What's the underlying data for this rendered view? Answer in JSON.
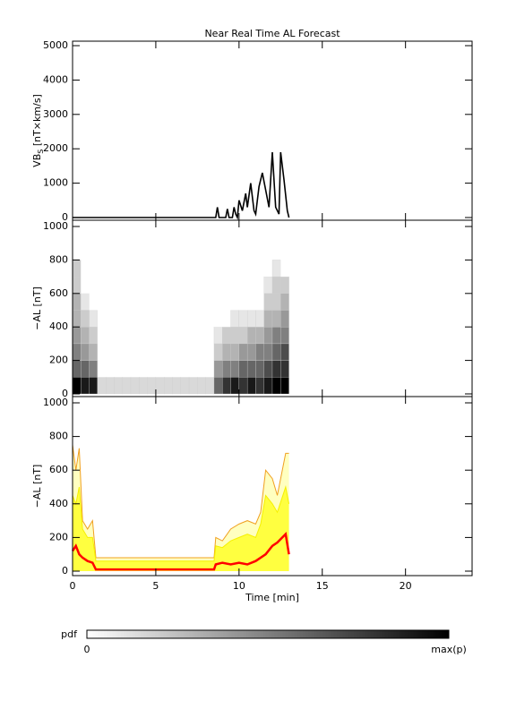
{
  "chart_data": [
    {
      "type": "line",
      "title": "Near Real Time AL Forecast",
      "ylabel_parts": [
        "VB",
        "S",
        " [nT×km/s]"
      ],
      "xlim": [
        0,
        24
      ],
      "xticks": [
        0,
        5,
        10,
        15,
        20
      ],
      "show_xticklabels": false,
      "ylim": [
        0,
        5000
      ],
      "yticks": [
        0,
        1000,
        2000,
        3000,
        4000,
        5000
      ],
      "x": [
        0,
        8.5,
        8.6,
        8.7,
        8.8,
        9.2,
        9.3,
        9.4,
        9.6,
        9.7,
        9.8,
        9.9,
        10.0,
        10.2,
        10.4,
        10.5,
        10.7,
        10.9,
        11.0,
        11.2,
        11.4,
        11.6,
        11.8,
        12.0,
        12.2,
        12.4,
        12.5,
        12.7,
        12.9,
        13.0
      ],
      "series": [
        {
          "color": "#000000",
          "values": [
            0,
            0,
            0,
            300,
            0,
            0,
            250,
            0,
            0,
            300,
            100,
            0,
            500,
            200,
            700,
            300,
            1000,
            200,
            100,
            900,
            1300,
            800,
            300,
            1900,
            300,
            100,
            1900,
            1100,
            200,
            0
          ]
        }
      ]
    },
    {
      "type": "heatmap",
      "ylabel": "−AL [nT]",
      "xlim": [
        0,
        24
      ],
      "xticks": [
        0,
        5,
        10,
        15,
        20
      ],
      "show_xticklabels": false,
      "ylim": [
        0,
        1000
      ],
      "yticks": [
        0,
        200,
        400,
        600,
        800,
        1000
      ],
      "xbins": [
        0,
        0.5,
        1,
        1.5,
        2,
        2.5,
        3,
        3.5,
        4,
        4.5,
        5,
        5.5,
        6,
        6.5,
        7,
        7.5,
        8,
        8.5,
        9,
        9.5,
        10,
        10.5,
        11,
        11.5,
        12,
        12.5,
        13
      ],
      "ybins": [
        0,
        100,
        200,
        300,
        400,
        500,
        600,
        700,
        800
      ],
      "z": [
        [
          1,
          0.6,
          0.5,
          0.4,
          0.3,
          0.3,
          0.2,
          0.2
        ],
        [
          0.9,
          0.6,
          0.4,
          0.3,
          0.2,
          0.1,
          0,
          0
        ],
        [
          0.9,
          0.5,
          0.3,
          0.2,
          0.1,
          0,
          0,
          0
        ],
        [
          0.15,
          0,
          0,
          0,
          0,
          0,
          0,
          0
        ],
        [
          0.15,
          0,
          0,
          0,
          0,
          0,
          0,
          0
        ],
        [
          0.15,
          0,
          0,
          0,
          0,
          0,
          0,
          0
        ],
        [
          0.15,
          0,
          0,
          0,
          0,
          0,
          0,
          0
        ],
        [
          0.15,
          0,
          0,
          0,
          0,
          0,
          0,
          0
        ],
        [
          0.15,
          0,
          0,
          0,
          0,
          0,
          0,
          0
        ],
        [
          0.15,
          0,
          0,
          0,
          0,
          0,
          0,
          0
        ],
        [
          0.15,
          0,
          0,
          0,
          0,
          0,
          0,
          0
        ],
        [
          0.15,
          0,
          0,
          0,
          0,
          0,
          0,
          0
        ],
        [
          0.15,
          0,
          0,
          0,
          0,
          0,
          0,
          0
        ],
        [
          0.15,
          0,
          0,
          0,
          0,
          0,
          0,
          0
        ],
        [
          0.15,
          0,
          0,
          0,
          0,
          0,
          0,
          0
        ],
        [
          0.15,
          0,
          0,
          0,
          0,
          0,
          0,
          0
        ],
        [
          0.15,
          0,
          0,
          0,
          0,
          0,
          0,
          0
        ],
        [
          0.6,
          0.4,
          0.2,
          0.1,
          0,
          0,
          0,
          0
        ],
        [
          0.8,
          0.5,
          0.3,
          0.2,
          0,
          0,
          0,
          0
        ],
        [
          0.9,
          0.5,
          0.3,
          0.2,
          0.1,
          0,
          0,
          0
        ],
        [
          0.8,
          0.6,
          0.4,
          0.2,
          0.1,
          0,
          0,
          0
        ],
        [
          0.9,
          0.6,
          0.4,
          0.3,
          0.1,
          0,
          0,
          0
        ],
        [
          0.8,
          0.6,
          0.5,
          0.3,
          0.1,
          0,
          0,
          0
        ],
        [
          0.9,
          0.7,
          0.5,
          0.4,
          0.3,
          0.2,
          0.1,
          0
        ],
        [
          1,
          0.8,
          0.6,
          0.5,
          0.3,
          0.2,
          0.2,
          0.1
        ],
        [
          1,
          0.8,
          0.7,
          0.5,
          0.4,
          0.3,
          0.2,
          0
        ]
      ]
    },
    {
      "type": "band",
      "ylabel": "−AL [nT]",
      "xlabel": "Time [min]",
      "xlim": [
        0,
        24
      ],
      "xticks": [
        0,
        5,
        10,
        15,
        20
      ],
      "show_xticklabels": true,
      "ylim": [
        0,
        1000
      ],
      "yticks": [
        0,
        200,
        400,
        600,
        800,
        1000
      ],
      "x": [
        0,
        0.2,
        0.4,
        0.6,
        0.9,
        1.2,
        1.4,
        8.5,
        8.6,
        9,
        9.5,
        10,
        10.5,
        11,
        11.3,
        11.6,
        12,
        12.3,
        12.8,
        13
      ],
      "series": [
        {
          "color": "#f0a020",
          "fill": "#ffffc0",
          "values": [
            750,
            600,
            730,
            300,
            250,
            300,
            80,
            80,
            200,
            180,
            250,
            280,
            300,
            280,
            350,
            600,
            550,
            450,
            700,
            700
          ]
        },
        {
          "color": "#f5f000",
          "fill": "#ffff40",
          "values": [
            450,
            400,
            500,
            250,
            200,
            200,
            60,
            60,
            150,
            140,
            180,
            200,
            220,
            200,
            280,
            450,
            400,
            350,
            500,
            400
          ]
        },
        {
          "color": "#ff0000",
          "values": [
            120,
            150,
            100,
            80,
            60,
            50,
            10,
            10,
            40,
            50,
            40,
            50,
            40,
            60,
            80,
            100,
            150,
            170,
            220,
            100
          ]
        }
      ]
    }
  ],
  "colorbar": {
    "label": "pdf",
    "min_label": "0",
    "max_label": "max(p)"
  }
}
